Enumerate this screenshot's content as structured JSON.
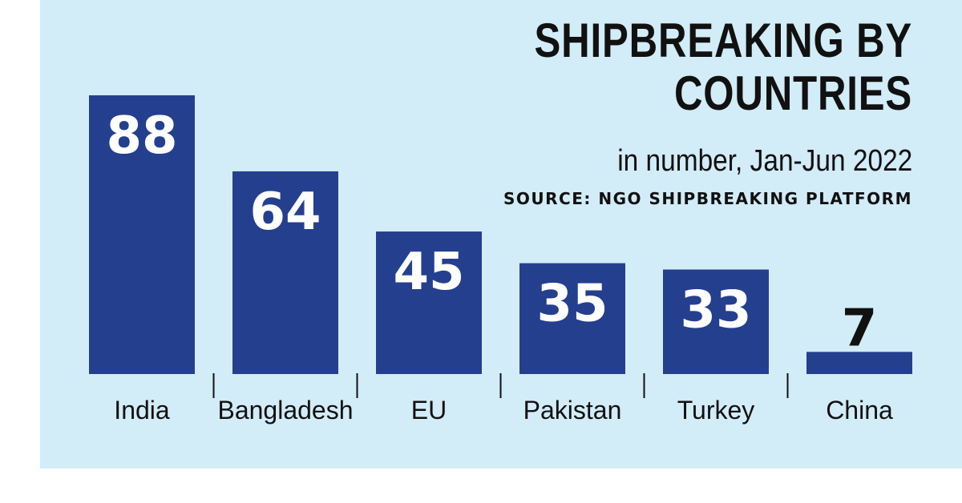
{
  "chart_data": {
    "type": "bar",
    "title_lines": [
      "SHIPBREAKING BY",
      "COUNTRIES"
    ],
    "subtitle": "in number, Jan-Jun 2022",
    "source": "SOURCE: NGO SHIPBREAKING PLATFORM",
    "categories": [
      "India",
      "Bangladesh",
      "EU",
      "Pakistan",
      "Turkey",
      "China"
    ],
    "values": [
      88,
      64,
      45,
      35,
      33,
      7
    ],
    "ylim": [
      0,
      88
    ],
    "grid": false,
    "colors": {
      "bar": "#253f8f",
      "value_inside": "#ffffff",
      "value_outside": "#111111",
      "background": "#d2ecf8"
    }
  }
}
